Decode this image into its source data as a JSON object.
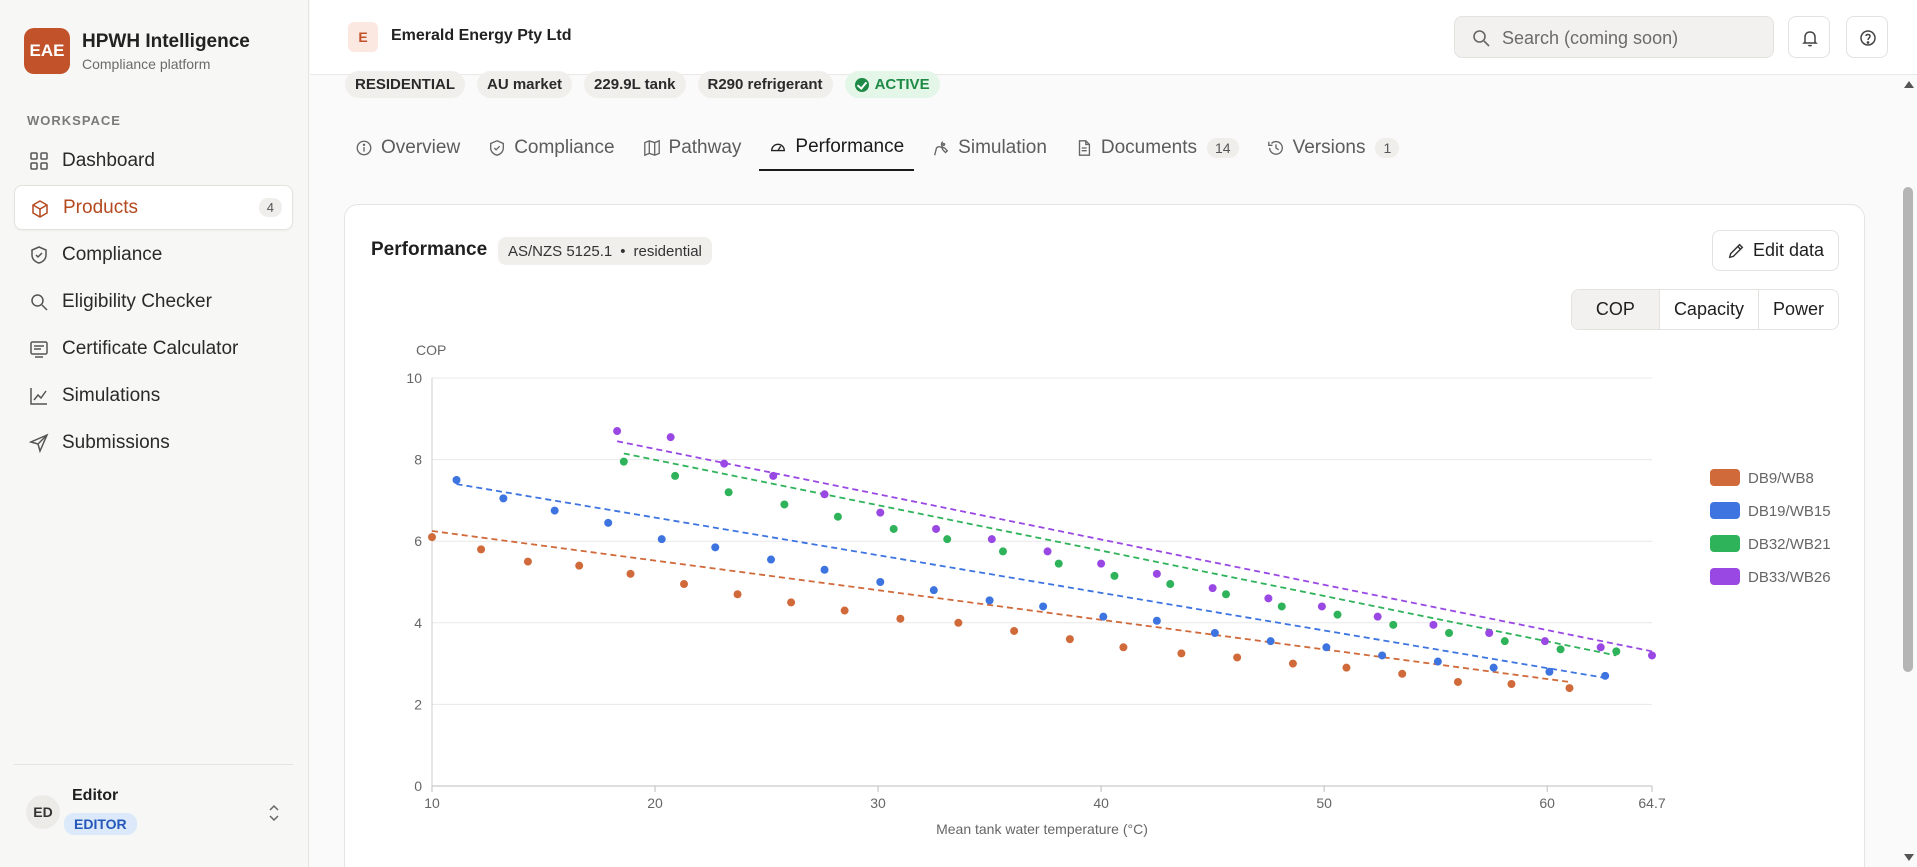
{
  "brand": {
    "logo": "EAE",
    "name": "HPWH Intelligence",
    "subtitle": "Compliance platform"
  },
  "sidebar": {
    "section_label": "WORKSPACE",
    "items": [
      {
        "label": "Dashboard",
        "icon": "grid-icon"
      },
      {
        "label": "Products",
        "icon": "box-icon",
        "badge": "4",
        "active": true
      },
      {
        "label": "Compliance",
        "icon": "shield-check-icon"
      },
      {
        "label": "Eligibility Checker",
        "icon": "search-icon"
      },
      {
        "label": "Certificate Calculator",
        "icon": "receipt-icon"
      },
      {
        "label": "Simulations",
        "icon": "line-chart-icon"
      },
      {
        "label": "Submissions",
        "icon": "send-icon"
      }
    ]
  },
  "user": {
    "initials": "ED",
    "name": "Editor",
    "role": "EDITOR"
  },
  "topbar": {
    "company_initial": "E",
    "company_name": "Emerald Energy Pty Ltd",
    "search_placeholder": "Search (coming soon)"
  },
  "tags": [
    "RESIDENTIAL",
    "AU market",
    "229.9L tank",
    "R290 refrigerant",
    "ACTIVE"
  ],
  "tabs": [
    {
      "label": "Overview",
      "icon": "info-icon"
    },
    {
      "label": "Compliance",
      "icon": "shield-check-icon"
    },
    {
      "label": "Pathway",
      "icon": "map-icon"
    },
    {
      "label": "Performance",
      "icon": "gauge-icon",
      "active": true
    },
    {
      "label": "Simulation",
      "icon": "wrench-icon"
    },
    {
      "label": "Documents",
      "icon": "file-icon",
      "count": "14"
    },
    {
      "label": "Versions",
      "icon": "history-icon",
      "count": "1"
    }
  ],
  "card": {
    "title": "Performance",
    "standard": "AS/NZS 5125.1",
    "separator": "•",
    "segment": "residential",
    "edit_label": "Edit data",
    "metric_tabs": [
      "COP",
      "Capacity",
      "Power"
    ],
    "active_metric": "COP"
  },
  "colors": {
    "accent": "#c2522a",
    "active_green": "#1e8a45"
  },
  "chart_data": {
    "type": "scatter",
    "ylabel": "COP",
    "xlabel": "Mean tank water temperature (°C)",
    "xlim": [
      10,
      64.7
    ],
    "ylim": [
      0,
      10
    ],
    "xticks": [
      10,
      20,
      30,
      40,
      50,
      60,
      64.7
    ],
    "yticks": [
      0,
      2,
      4,
      6,
      8,
      10
    ],
    "grid": true,
    "legend_position": "right",
    "fit_lines": "dashed",
    "series": [
      {
        "name": "DB9/WB8",
        "color": "#d06a3a",
        "x": [
          10,
          12.2,
          14.3,
          16.6,
          18.9,
          21.3,
          23.7,
          26.1,
          28.5,
          31,
          33.6,
          36.1,
          38.6,
          41,
          43.6,
          46.1,
          48.6,
          51,
          53.5,
          56,
          58.4,
          61
        ],
        "y": [
          6.1,
          5.8,
          5.5,
          5.4,
          5.2,
          4.95,
          4.7,
          4.5,
          4.3,
          4.1,
          4.0,
          3.8,
          3.6,
          3.4,
          3.25,
          3.15,
          3.0,
          2.9,
          2.75,
          2.55,
          2.5,
          2.4
        ],
        "fit": [
          [
            10,
            6.25
          ],
          [
            61,
            2.55
          ]
        ]
      },
      {
        "name": "DB19/WB15",
        "color": "#3d74e0",
        "x": [
          11.1,
          13.2,
          15.5,
          17.9,
          20.3,
          22.7,
          25.2,
          27.6,
          30.1,
          32.5,
          35,
          37.4,
          40.1,
          42.5,
          45.1,
          47.6,
          50.1,
          52.6,
          55.1,
          57.6,
          60.1,
          62.6
        ],
        "y": [
          7.5,
          7.05,
          6.75,
          6.45,
          6.05,
          5.85,
          5.55,
          5.3,
          5.0,
          4.8,
          4.55,
          4.4,
          4.15,
          4.05,
          3.75,
          3.55,
          3.4,
          3.2,
          3.05,
          2.9,
          2.8,
          2.7
        ],
        "fit": [
          [
            11.1,
            7.4
          ],
          [
            62.6,
            2.65
          ]
        ]
      },
      {
        "name": "DB32/WB21",
        "color": "#2fb35a",
        "x": [
          18.6,
          20.9,
          23.3,
          25.8,
          28.2,
          30.7,
          33.1,
          35.6,
          38.1,
          40.6,
          43.1,
          45.6,
          48.1,
          50.6,
          53.1,
          55.6,
          58.1,
          60.6,
          63.1
        ],
        "y": [
          7.95,
          7.6,
          7.2,
          6.9,
          6.6,
          6.3,
          6.05,
          5.75,
          5.45,
          5.15,
          4.95,
          4.7,
          4.4,
          4.2,
          3.95,
          3.75,
          3.55,
          3.35,
          3.3
        ],
        "fit": [
          [
            18.6,
            8.15
          ],
          [
            63.1,
            3.2
          ]
        ]
      },
      {
        "name": "DB33/WB26",
        "color": "#9a48e3",
        "x": [
          18.3,
          20.7,
          23.1,
          25.3,
          27.6,
          30.1,
          32.6,
          35.1,
          37.6,
          40.0,
          42.5,
          45.0,
          47.5,
          49.9,
          52.4,
          54.9,
          57.4,
          59.9,
          62.4,
          64.7
        ],
        "y": [
          8.7,
          8.55,
          7.9,
          7.6,
          7.15,
          6.7,
          6.3,
          6.05,
          5.75,
          5.45,
          5.2,
          4.85,
          4.6,
          4.4,
          4.15,
          3.95,
          3.75,
          3.55,
          3.4,
          3.2
        ],
        "fit": [
          [
            18.3,
            8.45
          ],
          [
            64.7,
            3.3
          ]
        ]
      }
    ]
  }
}
